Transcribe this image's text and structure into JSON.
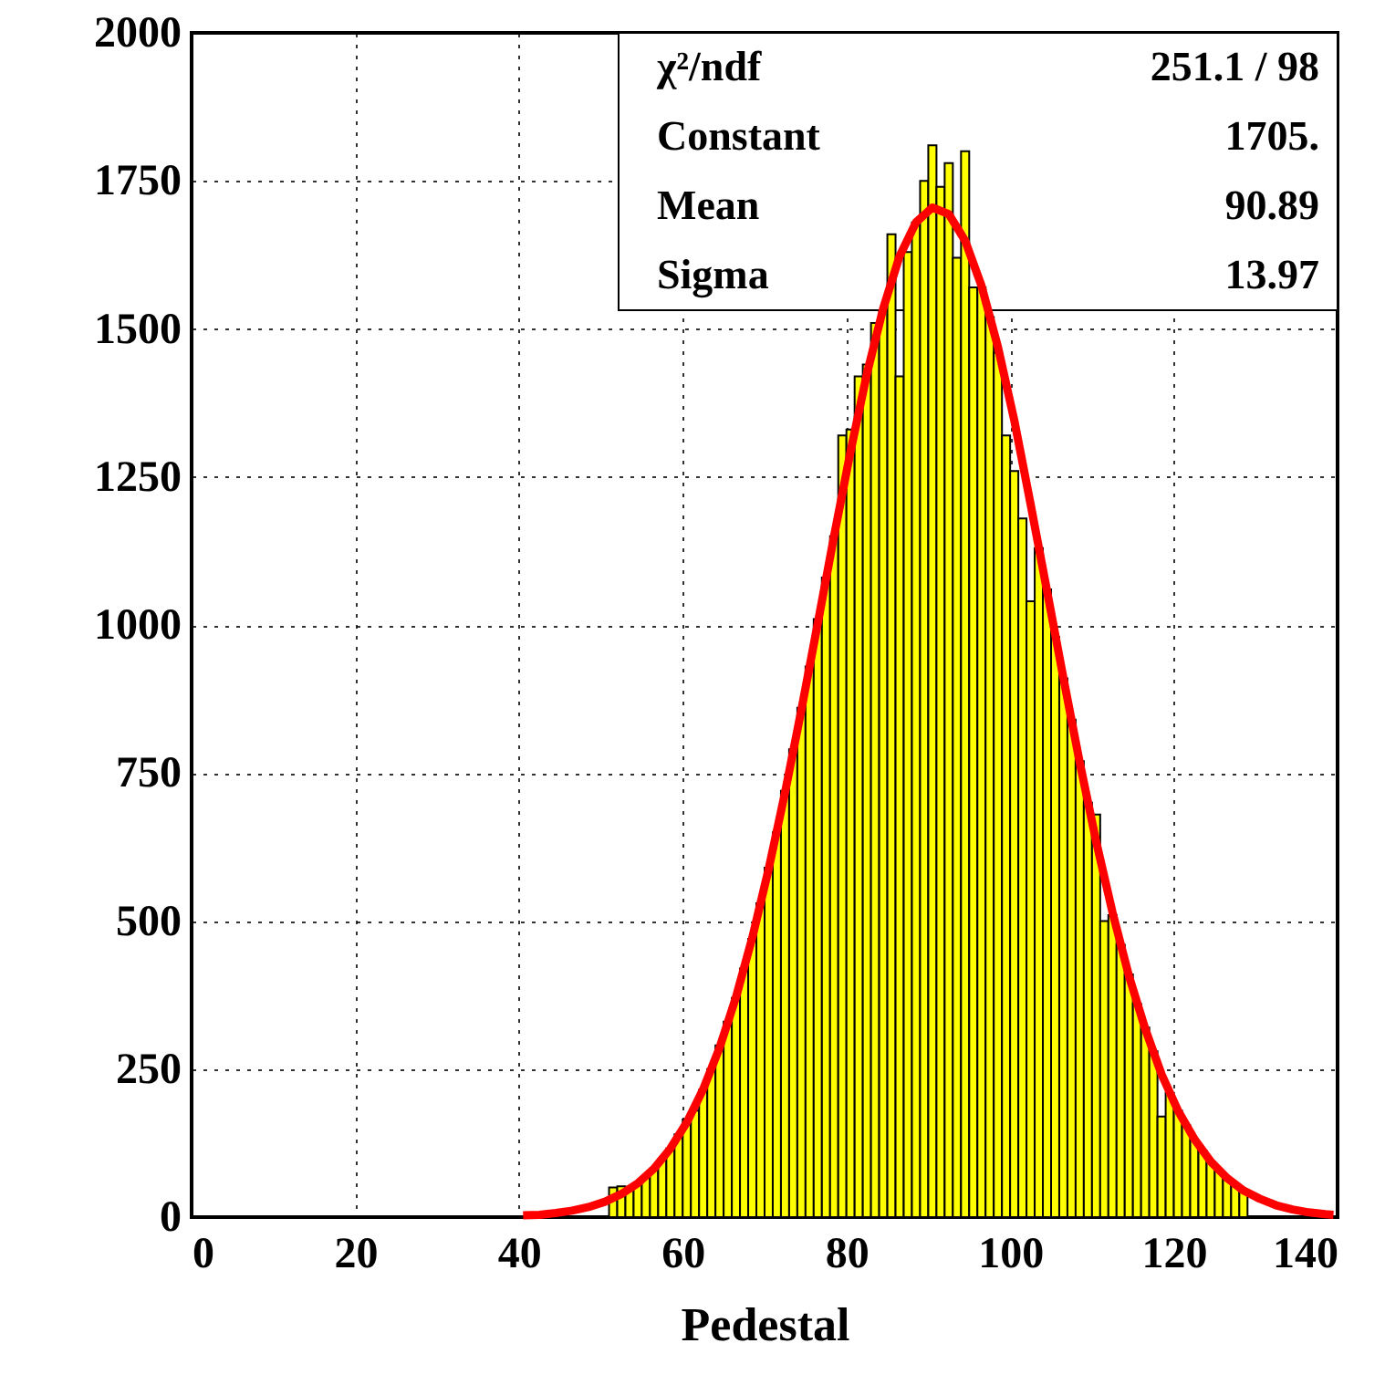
{
  "chart_data": {
    "type": "histogram",
    "xlabel": "Pedestal",
    "bins": [
      0,
      1,
      2,
      3,
      4,
      5,
      6,
      7,
      8,
      9,
      10,
      11,
      12,
      13,
      14,
      15,
      16,
      17,
      18,
      19,
      20,
      21,
      22,
      23,
      24,
      25,
      26,
      27,
      28,
      29,
      30,
      31,
      32,
      33,
      34,
      35,
      36,
      37,
      38,
      39,
      40,
      41,
      42,
      43,
      44,
      45,
      46,
      47,
      48,
      49,
      50,
      51,
      52,
      53,
      54,
      55,
      56,
      57,
      58,
      59,
      60,
      61,
      62,
      63,
      64,
      65,
      66,
      67,
      68,
      69,
      70,
      71,
      72,
      73,
      74,
      75,
      76,
      77,
      78,
      79,
      80,
      81,
      82,
      83,
      84,
      85,
      86,
      87,
      88,
      89,
      90,
      91,
      92,
      93,
      94,
      95,
      96,
      97,
      98,
      99,
      100,
      101,
      102,
      103,
      104,
      105,
      106,
      107,
      108,
      109,
      110,
      111,
      112,
      113,
      114,
      115,
      116,
      117,
      118,
      119,
      120,
      121,
      122,
      123,
      124,
      125,
      126,
      127,
      128,
      129,
      130,
      131,
      132,
      133,
      134,
      135,
      136,
      137,
      138,
      139,
      140
    ],
    "series": [
      {
        "color": "#ffff00",
        "values": [
          null,
          null,
          null,
          null,
          null,
          null,
          null,
          null,
          null,
          null,
          null,
          null,
          null,
          null,
          null,
          null,
          null,
          null,
          null,
          null,
          null,
          null,
          null,
          null,
          null,
          null,
          null,
          null,
          null,
          null,
          null,
          null,
          null,
          null,
          null,
          null,
          null,
          null,
          null,
          null,
          null,
          null,
          null,
          null,
          null,
          null,
          null,
          null,
          null,
          null,
          null,
          50,
          52,
          47,
          57,
          69,
          82,
          98,
          116,
          140,
          165,
          180,
          215,
          250,
          290,
          330,
          370,
          420,
          470,
          530,
          590,
          650,
          720,
          790,
          860,
          930,
          1010,
          1080,
          1150,
          1320,
          1330,
          1420,
          1440,
          1510,
          1530,
          1660,
          1420,
          1630,
          1680,
          1750,
          1810,
          1740,
          1780,
          1620,
          1800,
          1570,
          1570,
          1520,
          1460,
          1320,
          1260,
          1180,
          1040,
          1130,
          1060,
          980,
          910,
          840,
          770,
          700,
          680,
          500,
          510,
          460,
          410,
          360,
          320,
          280,
          170,
          210,
          180,
          155,
          130,
          112,
          94,
          79,
          66,
          55,
          45,
          null,
          null,
          null,
          null,
          null,
          null,
          null,
          null,
          null,
          null,
          null
        ]
      },
      {
        "type": "line",
        "color": "#ff0000",
        "x": [
          40.5,
          42.5,
          44.5,
          46.5,
          48.5,
          50.5,
          52.5,
          54.5,
          56.5,
          58.5,
          60.5,
          62.5,
          64.5,
          66.5,
          68.5,
          70.5,
          72.5,
          74.5,
          76.5,
          78.5,
          80.5,
          82.5,
          84.5,
          86.5,
          88.5,
          90.5,
          92.5,
          94.5,
          96.5,
          98.5,
          100.5,
          102.5,
          104.5,
          106.5,
          108.5,
          110.5,
          112.5,
          114.5,
          116.5,
          118.5,
          120.5,
          122.5,
          124.5,
          126.5,
          128.5,
          130.5,
          132.5,
          134.5,
          136.5,
          138.5,
          139.5
        ],
        "values": [
          3,
          4,
          7,
          11,
          17,
          26,
          39,
          57,
          82,
          116,
          160,
          216,
          286,
          371,
          472,
          588,
          717,
          857,
          1003,
          1151,
          1293,
          1424,
          1535,
          1623,
          1680,
          1705,
          1694,
          1649,
          1573,
          1470,
          1346,
          1204,
          1058,
          911,
          768,
          635,
          515,
          408,
          318,
          241,
          180,
          132,
          94,
          66,
          45,
          31,
          20,
          13,
          8,
          5,
          4
        ]
      }
    ],
    "xlim": [
      0,
      140
    ],
    "xticks": [
      0,
      20,
      40,
      60,
      80,
      100,
      120,
      140
    ],
    "ylim": [
      0,
      2000
    ],
    "yticks": [
      0,
      250,
      500,
      750,
      1000,
      1250,
      1500,
      1750,
      2000
    ],
    "grid": true,
    "line_style": "solid",
    "annotations": [
      "χ²/ndf",
      "251.1   /   98",
      "Constant",
      "1705.",
      "Mean",
      "90.89",
      "Sigma",
      "13.97"
    ]
  }
}
